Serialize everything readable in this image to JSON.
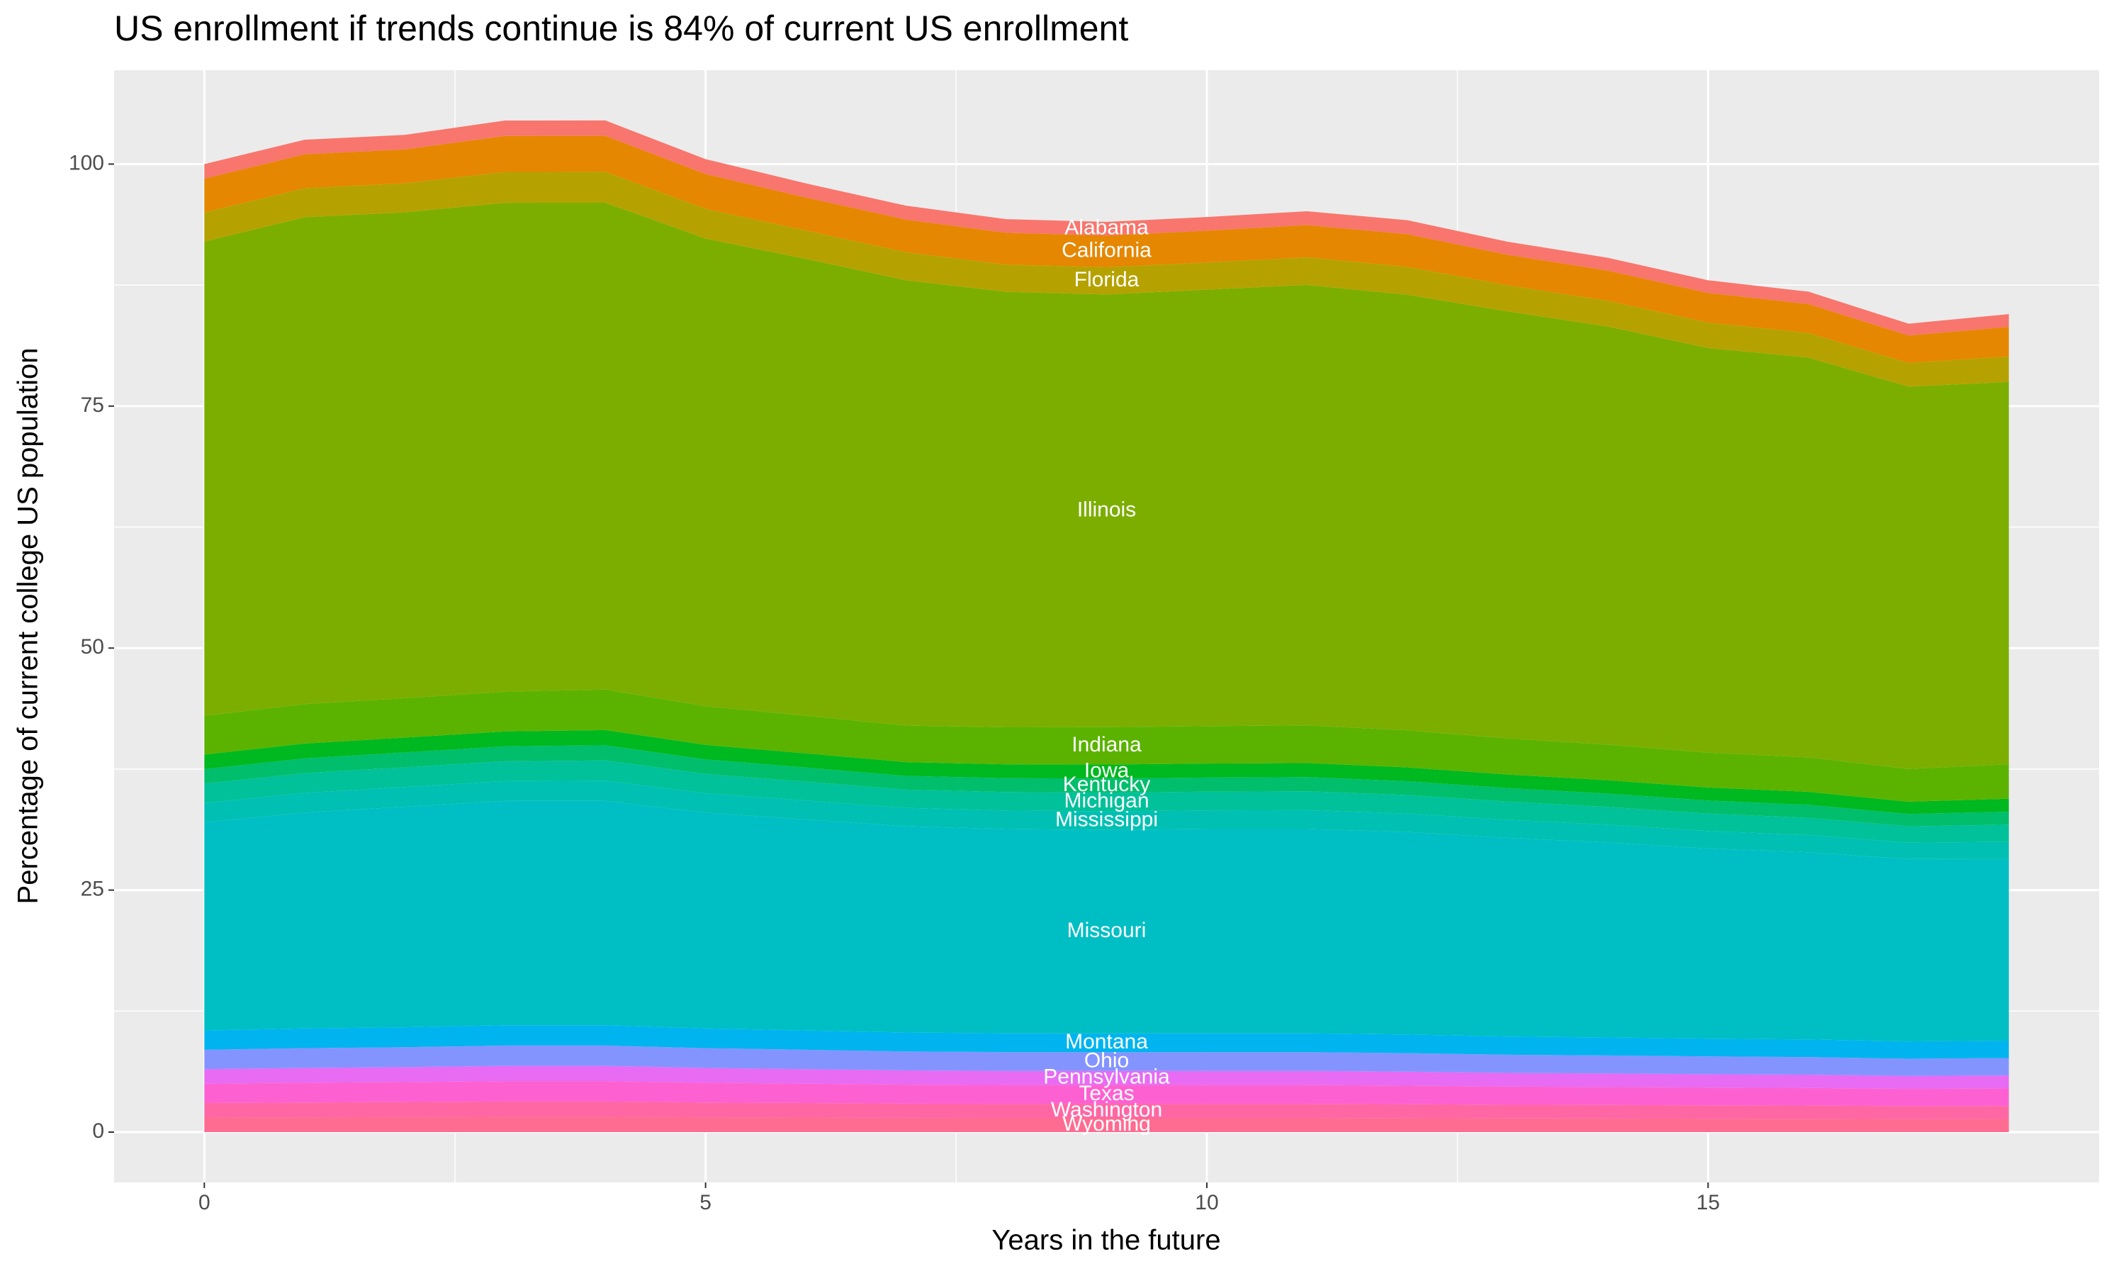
{
  "chart_data": {
    "type": "stacked-area",
    "title": "US enrollment if trends continue is 84% of current US enrollment",
    "x_label": "Years in the future",
    "y_label": "Percentage of current college US population",
    "x": [
      0,
      1,
      2,
      3,
      4,
      5,
      6,
      7,
      8,
      9,
      10,
      11,
      12,
      13,
      14,
      15,
      16,
      17,
      18
    ],
    "xlim": [
      -0.9,
      18.9
    ],
    "xticks": [
      0,
      5,
      10,
      15
    ],
    "ylim": [
      -5.2,
      109.7
    ],
    "yticks": [
      0,
      25,
      50,
      75,
      100
    ],
    "grid": true,
    "label_x": 9,
    "series": [
      {
        "name": "Wyoming",
        "color": "#FF6C91",
        "values": [
          1.5,
          1.53,
          1.55,
          1.58,
          1.58,
          1.53,
          1.5,
          1.47,
          1.46,
          1.46,
          1.46,
          1.46,
          1.44,
          1.41,
          1.4,
          1.38,
          1.37,
          1.34,
          1.35
        ]
      },
      {
        "name": "Washington",
        "color": "#FF67A4",
        "values": [
          1.5,
          1.53,
          1.55,
          1.58,
          1.58,
          1.53,
          1.5,
          1.47,
          1.46,
          1.46,
          1.46,
          1.46,
          1.44,
          1.41,
          1.4,
          1.38,
          1.37,
          1.34,
          1.35
        ]
      },
      {
        "name": "Texas",
        "color": "#FD61D1",
        "values": [
          2,
          2.04,
          2.06,
          2.1,
          2.1,
          2.04,
          2,
          1.96,
          1.94,
          1.94,
          1.94,
          1.94,
          1.92,
          1.88,
          1.86,
          1.84,
          1.82,
          1.78,
          1.8
        ]
      },
      {
        "name": "Pennsylvania",
        "color": "#E76BF3",
        "values": [
          1.5,
          1.53,
          1.55,
          1.58,
          1.58,
          1.53,
          1.5,
          1.47,
          1.46,
          1.46,
          1.46,
          1.46,
          1.44,
          1.41,
          1.4,
          1.38,
          1.37,
          1.34,
          1.35
        ]
      },
      {
        "name": "Ohio",
        "color": "#8494FF",
        "values": [
          2,
          2.04,
          2.06,
          2.1,
          2.1,
          2.04,
          2,
          1.96,
          1.94,
          1.94,
          1.94,
          1.94,
          1.92,
          1.88,
          1.86,
          1.84,
          1.82,
          1.78,
          1.8
        ]
      },
      {
        "name": "Montana",
        "color": "#00B4EF",
        "values": [
          2,
          2.04,
          2.06,
          2.1,
          2.1,
          2.04,
          2,
          1.96,
          1.94,
          1.94,
          1.94,
          1.94,
          1.92,
          1.88,
          1.86,
          1.84,
          1.82,
          1.78,
          1.8
        ]
      },
      {
        "name": "Missouri",
        "color": "#00BFC4",
        "values": [
          21.5,
          22.29,
          22.78,
          23.17,
          23.17,
          22.29,
          21.8,
          21.31,
          21.11,
          21.01,
          21.11,
          21.11,
          20.92,
          20.53,
          20.13,
          19.64,
          19.34,
          18.85,
          18.75
        ]
      },
      {
        "name": "Mississippi",
        "color": "#00C0B3",
        "values": [
          2,
          2.04,
          2.04,
          2.05,
          2.09,
          2,
          1.95,
          1.89,
          1.91,
          1.93,
          1.93,
          1.95,
          1.91,
          1.87,
          1.84,
          1.8,
          1.78,
          1.69,
          1.78
        ]
      },
      {
        "name": "Michigan",
        "color": "#00C19A",
        "values": [
          2,
          2.04,
          2.04,
          2.05,
          2.09,
          2,
          1.95,
          1.89,
          1.91,
          1.93,
          1.93,
          1.95,
          1.91,
          1.87,
          1.84,
          1.8,
          1.78,
          1.69,
          1.78
        ]
      },
      {
        "name": "Kentucky",
        "color": "#00BE6C",
        "values": [
          1.5,
          1.53,
          1.53,
          1.54,
          1.57,
          1.5,
          1.46,
          1.42,
          1.43,
          1.45,
          1.45,
          1.46,
          1.43,
          1.4,
          1.38,
          1.35,
          1.34,
          1.27,
          1.34
        ]
      },
      {
        "name": "Iowa",
        "color": "#00B81F",
        "values": [
          1.5,
          1.53,
          1.53,
          1.54,
          1.57,
          1.5,
          1.46,
          1.42,
          1.43,
          1.45,
          1.45,
          1.46,
          1.43,
          1.4,
          1.38,
          1.35,
          1.34,
          1.27,
          1.34
        ]
      },
      {
        "name": "Indiana",
        "color": "#5BB300",
        "values": [
          4,
          4.07,
          4.07,
          4.11,
          4.18,
          4,
          3.89,
          3.78,
          3.82,
          3.86,
          3.86,
          3.89,
          3.82,
          3.74,
          3.67,
          3.6,
          3.56,
          3.38,
          3.56
        ]
      },
      {
        "name": "Illinois",
        "color": "#7CAE00",
        "values": [
          49,
          50.3,
          50.2,
          50.5,
          50.3,
          48.3,
          47.2,
          46,
          45,
          44.7,
          45.1,
          45.5,
          45,
          44.1,
          43.2,
          41.8,
          41.3,
          39.5,
          39.5
        ]
      },
      {
        "name": "Florida",
        "color": "#B5A200",
        "values": [
          3,
          3,
          3,
          3.19,
          3.19,
          3.08,
          2.93,
          2.89,
          2.81,
          2.81,
          2.81,
          2.85,
          2.89,
          2.7,
          2.66,
          2.63,
          2.55,
          2.44,
          2.63
        ]
      },
      {
        "name": "California",
        "color": "#E58700",
        "values": [
          3.5,
          3.5,
          3.5,
          3.72,
          3.72,
          3.59,
          3.41,
          3.37,
          3.28,
          3.28,
          3.28,
          3.33,
          3.37,
          3.15,
          3.11,
          3.06,
          2.98,
          2.84,
          3.06
        ]
      },
      {
        "name": "Alabama",
        "color": "#F8766D",
        "values": [
          1.5,
          1.5,
          1.5,
          1.59,
          1.59,
          1.54,
          1.46,
          1.44,
          1.41,
          1.41,
          1.41,
          1.43,
          1.44,
          1.35,
          1.33,
          1.31,
          1.28,
          1.22,
          1.31
        ]
      }
    ]
  }
}
